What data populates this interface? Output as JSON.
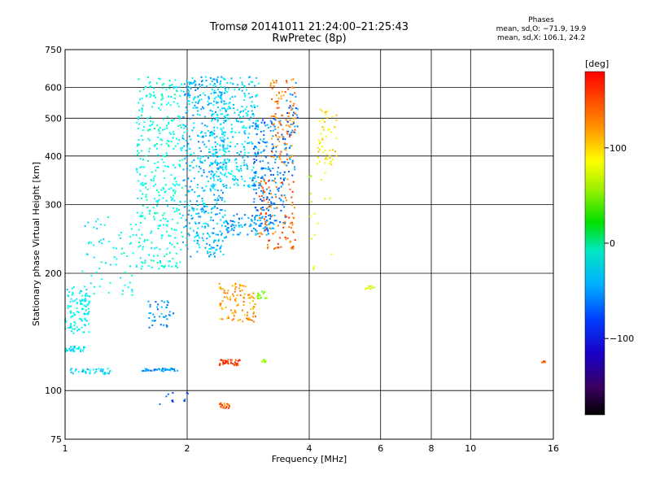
{
  "header": {
    "title_line1": "Tromsø 20141011 21:24:00–21:25:43",
    "title_line2": "RwPretec (8p)"
  },
  "phases": {
    "label": "Phases",
    "line_o": "mean, sd,O: −71.9, 19.9",
    "line_x": "mean, sd,X: 106.1, 24.2"
  },
  "chart_data": {
    "type": "scatter",
    "xlabel": "Frequency [MHz]",
    "ylabel": "Stationary phase Virtual Height [km]",
    "xscale": "log",
    "yscale": "log",
    "xlim": [
      1,
      16
    ],
    "ylim": [
      75,
      750
    ],
    "xticks": [
      "1",
      "2",
      "4",
      "6",
      "8",
      "10",
      "16"
    ],
    "xtick_values": [
      1,
      2,
      4,
      6,
      8,
      10,
      16
    ],
    "yticks": [
      "75",
      "100",
      "200",
      "300",
      "400",
      "500",
      "600",
      "750"
    ],
    "ytick_values": [
      75,
      100,
      200,
      300,
      400,
      500,
      600,
      750
    ],
    "grid": true,
    "colorbar": {
      "label": "[deg]",
      "ticks": [
        "100",
        "0",
        "−100"
      ],
      "tick_values": [
        100,
        0,
        -100
      ],
      "range": [
        -180,
        180
      ]
    },
    "series": [
      {
        "name": "O mode",
        "mean_phase": -71.9,
        "sd_phase": 19.9
      },
      {
        "name": "X mode",
        "mean_phase": 106.1,
        "sd_phase": 24.2
      }
    ],
    "clusters": [
      {
        "x": [
          1.0,
          1.15
        ],
        "y": [
          140,
          185
        ],
        "phase": -60,
        "n": 110
      },
      {
        "x": [
          1.0,
          1.12
        ],
        "y": [
          126,
          130
        ],
        "phase": -65,
        "n": 30
      },
      {
        "x": [
          1.03,
          1.3
        ],
        "y": [
          110,
          114
        ],
        "phase": -70,
        "n": 40
      },
      {
        "x": [
          1.1,
          1.5
        ],
        "y": [
          175,
          280
        ],
        "phase": -60,
        "n": 70
      },
      {
        "x": [
          1.5,
          1.95
        ],
        "y": [
          205,
          640
        ],
        "phase": -50,
        "n": 380
      },
      {
        "x": [
          1.55,
          1.9
        ],
        "y": [
          112,
          114
        ],
        "phase": -90,
        "n": 40
      },
      {
        "x": [
          1.6,
          1.85
        ],
        "y": [
          145,
          170
        ],
        "phase": -95,
        "n": 40
      },
      {
        "x": [
          1.95,
          2.5
        ],
        "y": [
          220,
          640
        ],
        "phase": -80,
        "n": 480
      },
      {
        "x": [
          2.3,
          3.0
        ],
        "y": [
          330,
          640
        ],
        "phase": -70,
        "n": 300
      },
      {
        "x": [
          2.4,
          2.95
        ],
        "y": [
          150,
          190
        ],
        "phase": 130,
        "n": 100
      },
      {
        "x": [
          2.4,
          2.7
        ],
        "y": [
          116,
          120
        ],
        "phase": 160,
        "n": 40
      },
      {
        "x": [
          2.4,
          2.55
        ],
        "y": [
          90,
          93
        ],
        "phase": 150,
        "n": 20
      },
      {
        "x": [
          2.5,
          3.3
        ],
        "y": [
          250,
          285
        ],
        "phase": -90,
        "n": 90
      },
      {
        "x": [
          2.9,
          3.5
        ],
        "y": [
          260,
          500
        ],
        "phase": -100,
        "n": 200
      },
      {
        "x": [
          3.0,
          3.7
        ],
        "y": [
          230,
          350
        ],
        "phase": 150,
        "n": 100
      },
      {
        "x": [
          3.2,
          3.7
        ],
        "y": [
          380,
          640
        ],
        "phase": 140,
        "n": 100
      },
      {
        "x": [
          3.5,
          3.75
        ],
        "y": [
          350,
          620
        ],
        "phase": -100,
        "n": 40
      },
      {
        "x": [
          4.2,
          4.7
        ],
        "y": [
          380,
          540
        ],
        "phase": 110,
        "n": 50
      },
      {
        "x": [
          4.0,
          4.6
        ],
        "y": [
          200,
          400
        ],
        "phase": 80,
        "n": 20
      },
      {
        "x": [
          2.95,
          3.15
        ],
        "y": [
          172,
          180
        ],
        "phase": 60,
        "n": 15
      },
      {
        "x": [
          3.05,
          3.15
        ],
        "y": [
          118,
          120
        ],
        "phase": 70,
        "n": 8
      },
      {
        "x": [
          5.5,
          5.8
        ],
        "y": [
          182,
          186
        ],
        "phase": 90,
        "n": 10
      },
      {
        "x": [
          15.0,
          15.4
        ],
        "y": [
          118,
          119
        ],
        "phase": 150,
        "n": 8
      },
      {
        "x": [
          1.7,
          2.1
        ],
        "y": [
          92,
          100
        ],
        "phase": -110,
        "n": 12
      }
    ]
  }
}
